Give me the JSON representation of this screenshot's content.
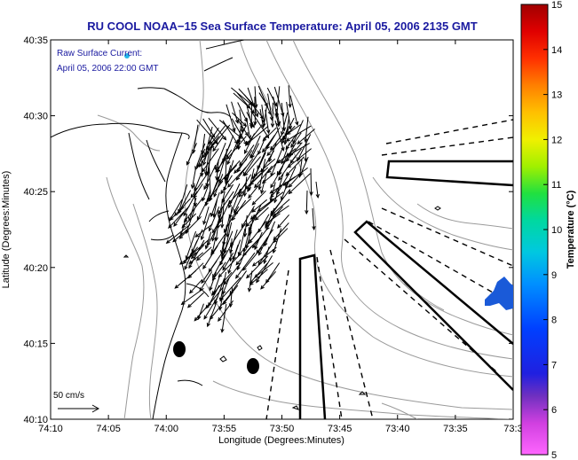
{
  "title": "RU COOL  NOAA−15  Sea Surface Temperature:  April 05, 2006 2135 GMT",
  "legend": {
    "line1": "Raw Surface Current:",
    "line2": "April 05, 2006 22:00 GMT"
  },
  "scale_label": "50 cm/s",
  "x_axis": {
    "label": "Longitude (Degrees:Minutes)",
    "ticks": [
      "74:10",
      "74:05",
      "74:00",
      "73:55",
      "73:50",
      "73:45",
      "73:40",
      "73:35",
      "73:3"
    ]
  },
  "y_axis": {
    "label": "Latitude (Degrees:Minutes)",
    "ticks": [
      "40:35",
      "40:30",
      "40:25",
      "40:20",
      "40:15",
      "40:10"
    ]
  },
  "colorbar": {
    "label": "Temperature (°C)",
    "ticks": [
      "15",
      "14",
      "13",
      "12",
      "11",
      "10",
      "9",
      "8",
      "7",
      "6",
      "5"
    ],
    "min": 5,
    "max": 15
  },
  "colors": {
    "title": "#1a1aa0",
    "current_marker": "#22b8e8",
    "sst_patch": "#1a5ad8"
  }
}
